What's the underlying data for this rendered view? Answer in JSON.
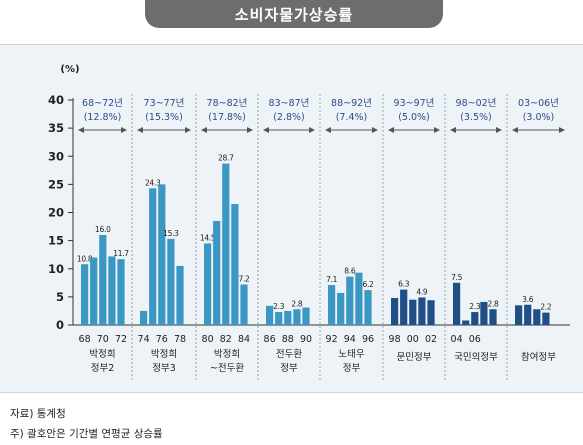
{
  "title": "소비자물가상승률",
  "unit": "(%)",
  "footer": {
    "source": "자료) 통계청",
    "note": "주) 괄호안은 기간별 연평균 상승률"
  },
  "colors": {
    "accent": "#3b97c3",
    "dark": "#1f4f86",
    "label": "#2e4b8c"
  },
  "chart_data": {
    "type": "bar",
    "ylim": [
      0,
      40
    ],
    "yticks": [
      0,
      5,
      10,
      15,
      20,
      25,
      30,
      35,
      40
    ],
    "grid": false,
    "x_tick_labels": [
      "68",
      "70",
      "72",
      "74",
      "76",
      "78",
      "80",
      "82",
      "84",
      "86",
      "88",
      "90",
      "92",
      "94",
      "96",
      "98",
      "00",
      "02",
      "04",
      "06"
    ],
    "periods": [
      {
        "range": "68~72년",
        "avg": "(12.8%)",
        "group": "박정희\n정부2",
        "color": "light",
        "values": [
          10.8,
          12.0,
          16.0,
          12.2,
          11.7
        ],
        "value_labels": [
          "10.8",
          "",
          "16.0",
          "",
          "11.7"
        ]
      },
      {
        "range": "73~77년",
        "avg": "(15.3%)",
        "group": "박정희\n정부3",
        "color": "light",
        "values": [
          2.5,
          24.3,
          25.0,
          15.3,
          10.5
        ],
        "value_labels": [
          "",
          "24.3",
          "",
          "15.3",
          ""
        ]
      },
      {
        "range": "78~82년",
        "avg": "(17.8%)",
        "group": "박정희\n~전두환",
        "color": "light",
        "values": [
          14.5,
          18.5,
          28.7,
          21.5,
          7.2
        ],
        "value_labels": [
          "14.5",
          "",
          "28.7",
          "",
          "7.2"
        ]
      },
      {
        "range": "83~87년",
        "avg": "(2.8%)",
        "group": "전두환\n정부",
        "color": "light",
        "values": [
          3.4,
          2.3,
          2.5,
          2.8,
          3.1
        ],
        "value_labels": [
          "",
          "2.3",
          "",
          "2.8",
          ""
        ]
      },
      {
        "range": "88~92년",
        "avg": "(7.4%)",
        "group": "노태우\n정부",
        "color": "light",
        "values": [
          7.1,
          5.7,
          8.6,
          9.3,
          6.2
        ],
        "value_labels": [
          "7.1",
          "",
          "8.6",
          "",
          "6.2"
        ]
      },
      {
        "range": "93~97년",
        "avg": "(5.0%)",
        "group": "문민정부",
        "color": "dark",
        "values": [
          4.8,
          6.3,
          4.5,
          4.9,
          4.4
        ],
        "value_labels": [
          "",
          "6.3",
          "",
          "4.9",
          ""
        ]
      },
      {
        "range": "98~02년",
        "avg": "(3.5%)",
        "group": "국민의정부",
        "color": "dark",
        "values": [
          7.5,
          0.8,
          2.3,
          4.1,
          2.8
        ],
        "value_labels": [
          "7.5",
          "",
          "2.3",
          "",
          "2.8"
        ]
      },
      {
        "range": "03~06년",
        "avg": "(3.0%)",
        "group": "참여정부",
        "color": "dark",
        "values": [
          3.5,
          3.6,
          2.8,
          2.2
        ],
        "value_labels": [
          "",
          "3.6",
          "",
          "2.2"
        ]
      }
    ]
  }
}
